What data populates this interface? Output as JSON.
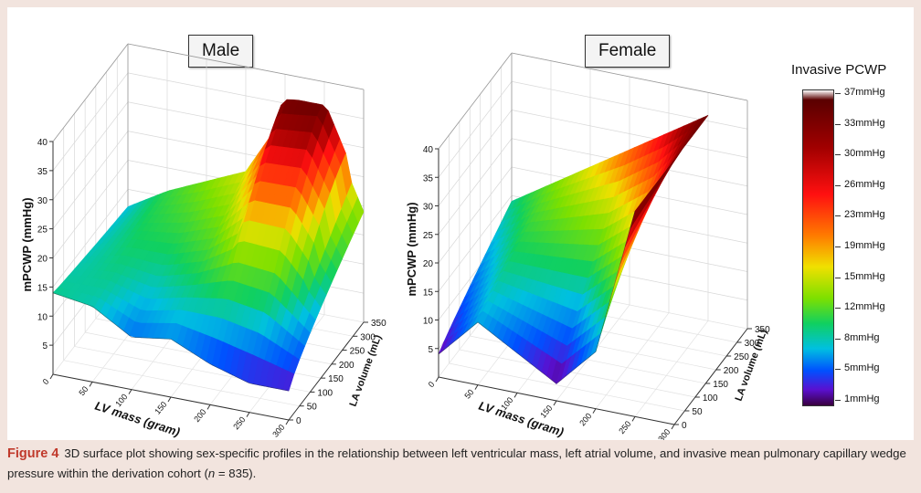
{
  "figure": {
    "label": "Figure 4",
    "caption_part1": "3D surface plot showing sex-specific profiles in the relationship between left ventricular mass, left atrial volume, and invasive mean pulmonary capillary wedge pressure within the derivation cohort (",
    "caption_n": "n",
    "caption_part2": " = 835)."
  },
  "legend": {
    "title": "Invasive PCWP",
    "labels": [
      "37mmHg",
      "33mmHg",
      "30mmHg",
      "26mmHg",
      "23mmHg",
      "19mmHg",
      "15mmHg",
      "12mmHg",
      "8mmHg",
      "5mmHg",
      "1mmHg"
    ]
  },
  "chart_data": [
    {
      "type": "surface3d",
      "title": "Male",
      "xlabel": "LV mass (gram)",
      "ylabel": "LA volume (mL)",
      "zlabel": "mPCWP (mmHg)",
      "x_ticks": [
        "0",
        "50",
        "100",
        "150",
        "200",
        "250",
        "300"
      ],
      "y_ticks": [
        "0",
        "50",
        "100",
        "150",
        "200",
        "250",
        "300",
        "350"
      ],
      "z_ticks": [
        "5",
        "10",
        "15",
        "20",
        "25",
        "30",
        "35",
        "40"
      ],
      "xlim": [
        0,
        300
      ],
      "ylim": [
        0,
        350
      ],
      "zlim": [
        0,
        40
      ],
      "x_front": [
        0,
        50,
        100,
        150,
        200,
        250,
        300
      ],
      "z_front": [
        14,
        13,
        9,
        10,
        7,
        5,
        5
      ],
      "z_back_approx": [
        12,
        16,
        19,
        22,
        33,
        34,
        19
      ],
      "peak": {
        "lv_mass": 250,
        "la_volume": 300,
        "mpcwp": 34
      }
    },
    {
      "type": "surface3d",
      "title": "Female",
      "xlabel": "LV mass (gram)",
      "ylabel": "LA volume (mL)",
      "zlabel": "mPCWP (mmHg)",
      "x_ticks": [
        "0",
        "50",
        "100",
        "150",
        "200",
        "250",
        "300"
      ],
      "y_ticks": [
        "0",
        "50",
        "100",
        "150",
        "200",
        "250",
        "300",
        "350"
      ],
      "z_ticks": [
        "5",
        "10",
        "15",
        "20",
        "25",
        "30",
        "35",
        "40"
      ],
      "xlim": [
        0,
        300
      ],
      "ylim": [
        0,
        350
      ],
      "zlim": [
        0,
        40
      ],
      "x_front": [
        0,
        50,
        100,
        150,
        200,
        250
      ],
      "z_front": [
        4,
        11,
        7,
        3,
        10,
        36
      ],
      "peak": {
        "lv_mass": 250,
        "la_volume": 350,
        "mpcwp": 37
      }
    }
  ]
}
